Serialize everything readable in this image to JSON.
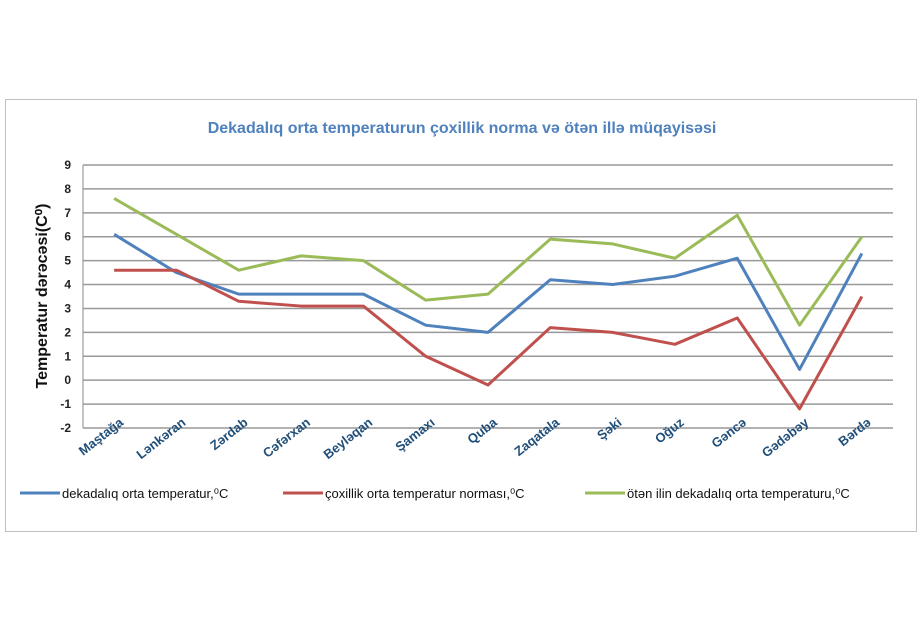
{
  "chart_data": {
    "type": "line",
    "title": "Dekadalıq orta temperaturun çoxillik   norma və ötən illə müqayisəsi",
    "xlabel": "",
    "ylabel": "Temperatur dərəcəsi(C⁰)",
    "ylim": [
      -2,
      9
    ],
    "yticks": [
      "9",
      "8",
      "7",
      "6",
      "5",
      "4",
      "3",
      "2",
      "1",
      "0",
      "-1",
      "-2"
    ],
    "grid": true,
    "legend_position": "bottom",
    "categories": [
      "Maştağa",
      "Lənkəran",
      "Zərdab",
      "Cəfərxan",
      "Beyləqan",
      "Şamaxı",
      "Quba",
      "Zaqatala",
      "Şəki",
      "Oğuz",
      "Gəncə",
      "Gədəbəy",
      "Bərdə"
    ],
    "series": [
      {
        "name": "dekadalıq orta temperatur,⁰C",
        "color": "#4f81bd",
        "values": [
          6.1,
          4.5,
          3.6,
          3.6,
          3.6,
          2.3,
          2.0,
          4.2,
          4.0,
          4.35,
          5.1,
          0.45,
          5.3
        ]
      },
      {
        "name": "çoxillik orta temperatur norması,⁰C",
        "color": "#c0504d",
        "values": [
          4.6,
          4.6,
          3.3,
          3.1,
          3.1,
          1.0,
          -0.2,
          2.2,
          2.0,
          1.5,
          2.6,
          -1.2,
          3.5
        ]
      },
      {
        "name": "ötən ilin dekadalıq orta temperaturu,⁰C",
        "color": "#9bbb59",
        "values": [
          7.6,
          6.1,
          4.6,
          5.2,
          5.0,
          3.35,
          3.6,
          5.9,
          5.7,
          5.1,
          6.9,
          2.3,
          6.0
        ]
      }
    ]
  }
}
